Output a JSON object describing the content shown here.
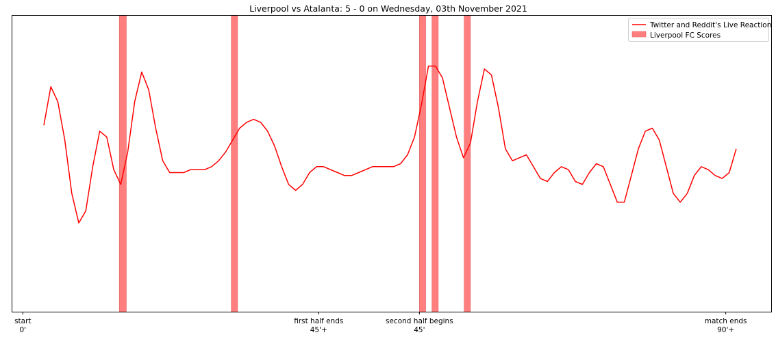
{
  "chart_data": {
    "type": "line",
    "title": "Liverpool vs Atalanta: 5 - 0 on Wednesday, 03th November 2021",
    "xlabel": "",
    "ylabel": "",
    "grid": false,
    "legend_position": "top-right",
    "x_ticks": [
      {
        "minute": 0,
        "line1": "start",
        "line2": "0'"
      },
      {
        "minute": 42.3,
        "line1": "first half ends",
        "line2": "45'+"
      },
      {
        "minute": 56.7,
        "line1": "second half begins",
        "line2": "45'"
      },
      {
        "minute": 100.5,
        "line1": "match ends",
        "line2": "90'+"
      }
    ],
    "xlim": [
      -1.5,
      107
    ],
    "ylim": [
      0,
      100
    ],
    "series": [
      {
        "name": "Twitter and Reddit's Live Reaction",
        "color": "#ff0000",
        "x": [
          3,
          4,
          5,
          6,
          7,
          8,
          9,
          10,
          11,
          12,
          13,
          14,
          15,
          16,
          17,
          18,
          19,
          20,
          21,
          22,
          23,
          24,
          25,
          26,
          27,
          28,
          29,
          30,
          31,
          32,
          33,
          34,
          35,
          36,
          37,
          38,
          39,
          40,
          41,
          42,
          43,
          44,
          45,
          46,
          47,
          48,
          49,
          50,
          51,
          52,
          53,
          54,
          55,
          56,
          57,
          58,
          59,
          60,
          61,
          62,
          63,
          64,
          65,
          66,
          67,
          68,
          69,
          70,
          71,
          72,
          73,
          74,
          75,
          76,
          77,
          78,
          79,
          80,
          81,
          82,
          83,
          84,
          85,
          86,
          87,
          88,
          89,
          90,
          91,
          92,
          93,
          94,
          95,
          96,
          97,
          98,
          99,
          100,
          101,
          102
        ],
        "y": [
          63,
          76,
          71,
          58,
          40,
          30,
          34,
          49,
          61,
          59,
          48,
          43,
          54,
          71,
          81,
          75,
          62,
          51,
          47,
          47,
          47,
          48,
          48,
          48,
          49,
          51,
          54,
          58,
          62,
          64,
          65,
          64,
          61,
          56,
          49,
          43,
          41,
          43,
          47,
          49,
          49,
          48,
          47,
          46,
          46,
          47,
          48,
          49,
          49,
          49,
          49,
          50,
          53,
          59,
          70,
          83,
          83,
          79,
          69,
          59,
          52,
          57,
          71,
          82,
          80,
          69,
          55,
          51,
          52,
          53,
          49,
          45,
          44,
          47,
          49,
          48,
          44,
          43,
          47,
          50,
          49,
          43,
          37,
          37,
          46,
          55,
          61,
          62,
          58,
          49,
          40,
          37,
          40,
          46,
          49,
          48,
          46,
          45,
          47,
          55
        ]
      }
    ],
    "shaded_regions": {
      "name": "Liverpool FC Scores",
      "color": "#ff7f7f",
      "intervals": [
        [
          13.8,
          14.8
        ],
        [
          29.8,
          30.7
        ],
        [
          56.7,
          57.6
        ],
        [
          58.5,
          59.4
        ],
        [
          63.1,
          64.0
        ]
      ]
    }
  }
}
